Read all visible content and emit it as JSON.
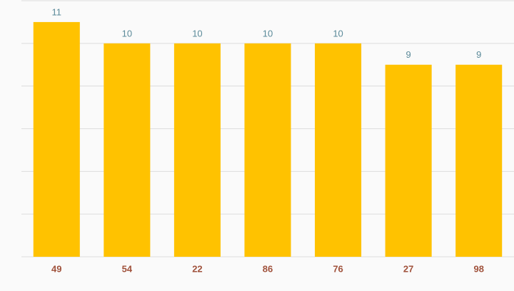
{
  "chart_data": {
    "type": "bar",
    "categories": [
      "49",
      "54",
      "22",
      "86",
      "76",
      "27",
      "98"
    ],
    "values": [
      11,
      10,
      10,
      10,
      10,
      9,
      9
    ],
    "color": "#ffc200",
    "ylim": [
      0,
      12
    ],
    "yticks": [
      0,
      2,
      4,
      6,
      8,
      10,
      12
    ],
    "grid": true
  }
}
